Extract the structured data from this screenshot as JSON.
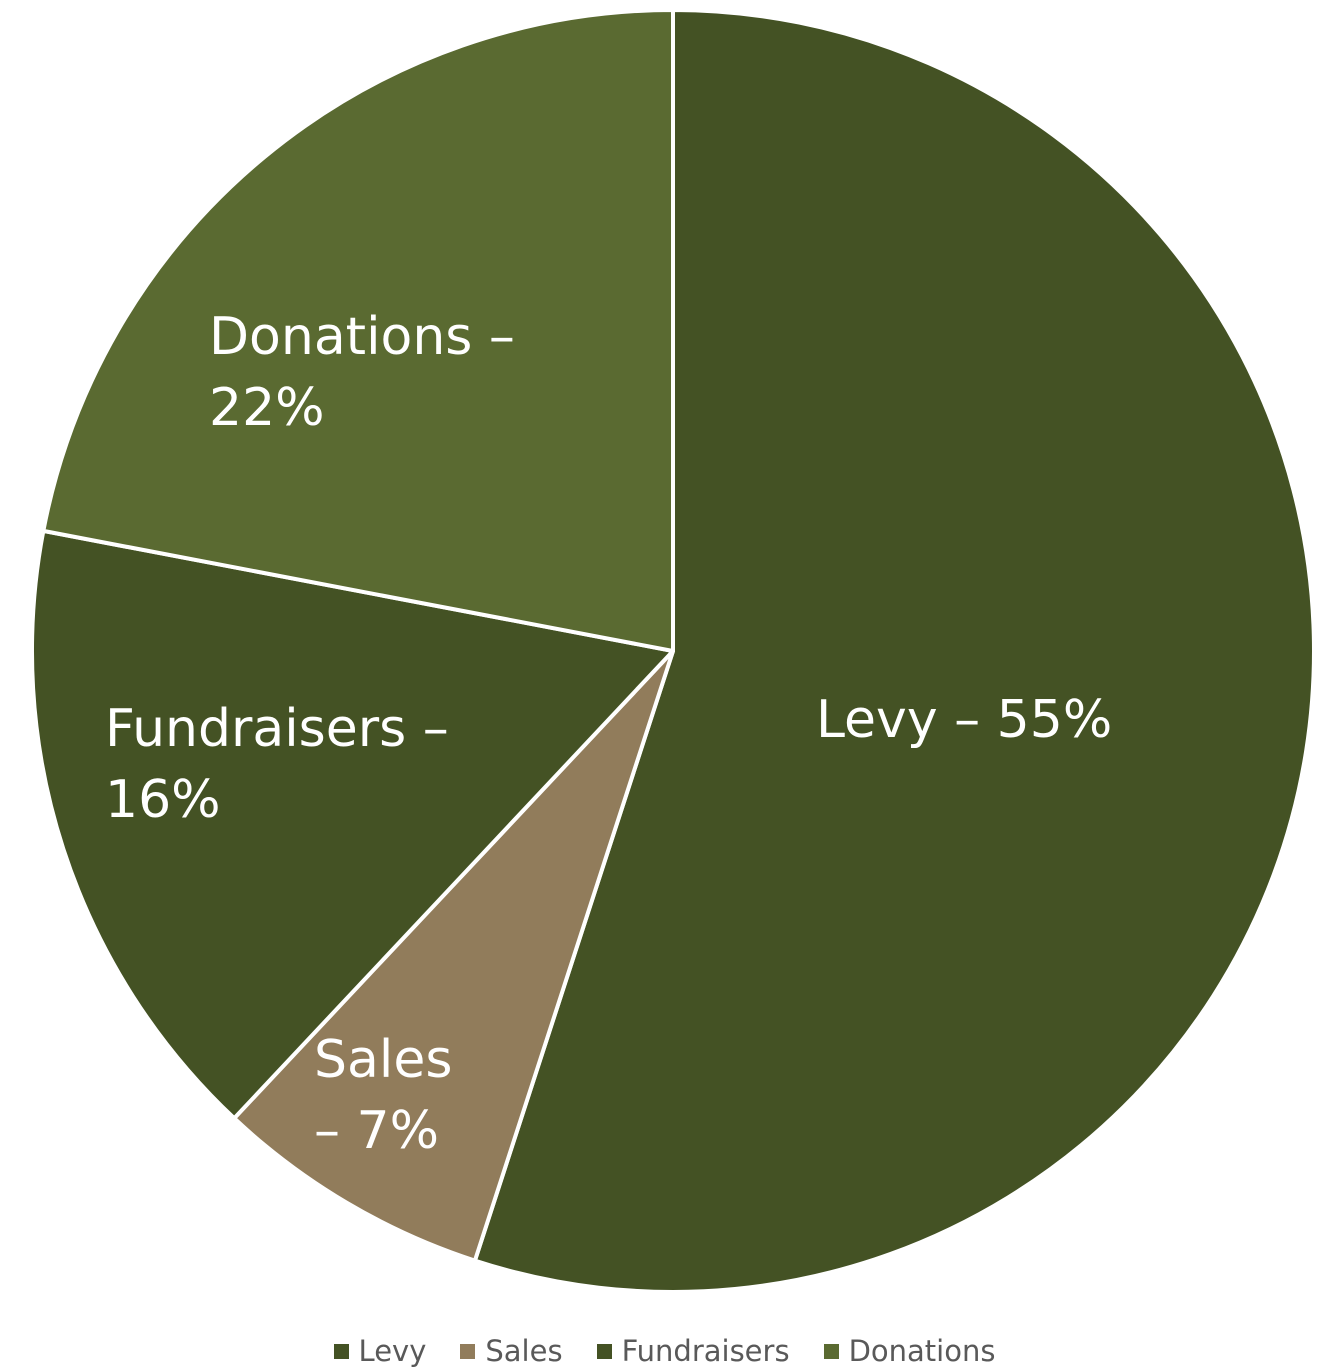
{
  "chart_data": {
    "type": "pie",
    "title": "",
    "start_angle_deg": 0,
    "direction": "clockwise",
    "slices": [
      {
        "name": "Levy",
        "value": 55,
        "color": "#445224",
        "label_lines": [
          "Levy – 55%"
        ]
      },
      {
        "name": "Sales",
        "value": 7,
        "color": "#917c5b",
        "label_lines": [
          "Sales",
          "– 7%"
        ]
      },
      {
        "name": "Fundraisers",
        "value": 16,
        "color": "#445224",
        "label_lines": [
          "Fundraisers –",
          "16%"
        ]
      },
      {
        "name": "Donations",
        "value": 22,
        "color": "#5a6a31",
        "label_lines": [
          "Donations –",
          "22%"
        ]
      }
    ],
    "legend": {
      "position": "bottom",
      "items": [
        {
          "label": "Levy",
          "color": "#445224"
        },
        {
          "label": "Sales",
          "color": "#917c5b"
        },
        {
          "label": "Fundraisers",
          "color": "#445224"
        },
        {
          "label": "Donations",
          "color": "#5a6a31"
        }
      ]
    },
    "slice_border_color": "#ffffff"
  }
}
